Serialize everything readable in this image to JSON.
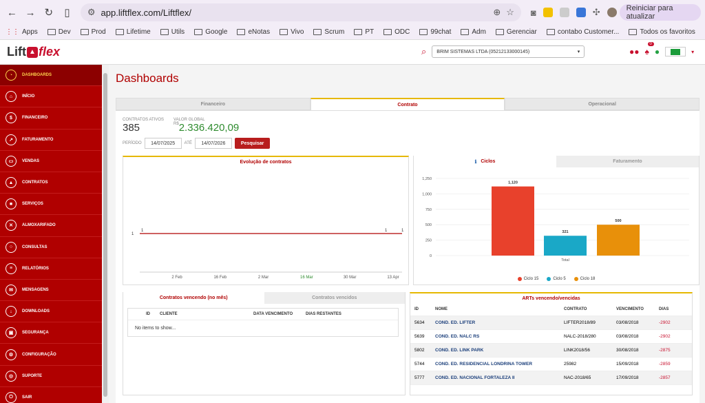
{
  "browser": {
    "url": "app.liftflex.com/Liftflex/",
    "update_button": "Reiniciar para atualizar",
    "bookmarks": [
      "Apps",
      "Dev",
      "Prod",
      "Lifetime",
      "Utils",
      "Google",
      "eNotas",
      "Vivo",
      "Scrum",
      "PT",
      "ODC",
      "99chat",
      "Adm",
      "Gerenciar",
      "contabo Customer...",
      "Todos os favoritos"
    ]
  },
  "header": {
    "logo_lift": "Lift",
    "logo_flex": "flex",
    "company": "BRIM SISTEMAS LTDA (05212133000145)",
    "notifications": "0"
  },
  "sidebar": {
    "items": [
      {
        "label": "DASHBOARDS",
        "icon": "gauge-icon",
        "glyph": "◔"
      },
      {
        "label": "INÍCIO",
        "icon": "home-icon",
        "glyph": "⌂"
      },
      {
        "label": "FINANCEIRO",
        "icon": "dollar-icon",
        "glyph": "$"
      },
      {
        "label": "FATURAMENTO",
        "icon": "chart-line-icon",
        "glyph": "↗"
      },
      {
        "label": "VENDAS",
        "icon": "folder-icon",
        "glyph": "▭"
      },
      {
        "label": "CONTRATOS",
        "icon": "lock-icon",
        "glyph": "▲"
      },
      {
        "label": "SERVIÇOS",
        "icon": "briefcase-icon",
        "glyph": "■"
      },
      {
        "label": "ALMOXARIFADO",
        "icon": "wrench-icon",
        "glyph": "✕"
      },
      {
        "label": "CONSULTAS",
        "icon": "search-icon",
        "glyph": "○"
      },
      {
        "label": "RELATÓRIOS",
        "icon": "report-icon",
        "glyph": "≡"
      },
      {
        "label": "MENSAGENS",
        "icon": "envelope-icon",
        "glyph": "✉"
      },
      {
        "label": "DOWNLOADS",
        "icon": "download-icon",
        "glyph": "↓"
      },
      {
        "label": "SEGURANÇA",
        "icon": "lock-icon",
        "glyph": "▣"
      },
      {
        "label": "CONFIGURAÇÃO",
        "icon": "gears-icon",
        "glyph": "⚙"
      },
      {
        "label": "SUPORTE",
        "icon": "lifebuoy-icon",
        "glyph": "◎"
      },
      {
        "label": "SAIR",
        "icon": "power-icon",
        "glyph": "⏻"
      }
    ]
  },
  "main": {
    "title": "Dashboards",
    "tabs": [
      "Financeiro",
      "Contrato",
      "Operacional"
    ],
    "stats": {
      "active_label": "CONTRATOS ATIVOS",
      "active_value": "385",
      "global_label": "VALOR GLOBAL",
      "currency": "R$",
      "global_value": "2.336.420,09"
    },
    "period": {
      "label": "PERÍODO",
      "from": "14/07/2025",
      "to_label": "ATÉ",
      "to": "14/07/2026",
      "button": "Pesquisar"
    },
    "evolution_title": "Evolução de contratos",
    "cycles_tab": "Ciclos",
    "billing_tab": "Faturamento",
    "contracts_tab_expiring": "Contratos vencendo (no mês)",
    "contracts_tab_expired": "Contratos vencidos",
    "contracts_headers": [
      "ID",
      "CLIENTE",
      "DATA VENCIMENTO",
      "DIAS RESTANTES"
    ],
    "no_items": "No items to show...",
    "arts_title": "ARTs vencendo/vencidas",
    "arts_headers": [
      "ID",
      "NOME",
      "CONTRATO",
      "VENCIMENTO",
      "DIAS"
    ],
    "arts_rows": [
      [
        "5634",
        "COND. ED. LIFTER",
        "LIFTER2018/89",
        "03/08/2018",
        "-2902"
      ],
      [
        "5639",
        "COND. ED. NALC RS",
        "NALC-2018/280",
        "03/08/2018",
        "-2902"
      ],
      [
        "5802",
        "COND. ED. LINK PARK",
        "LINK2018/56",
        "30/08/2018",
        "-2875"
      ],
      [
        "5744",
        "COND. ED. RESIDENCIAL LONDRINA TOWER",
        "25982",
        "15/09/2018",
        "-2859"
      ],
      [
        "5777",
        "COND. ED. NACIONAL FORTALEZA II",
        "NAC-2018/65",
        "17/09/2018",
        "-2857"
      ]
    ]
  },
  "chart_data": [
    {
      "type": "line",
      "title": "Evolução de contratos",
      "x": [
        "2 Feb",
        "16 Feb",
        "2 Mar",
        "16 Mar",
        "30 Mar",
        "13 Apr"
      ],
      "series": [
        {
          "values": [
            1,
            1,
            1,
            1,
            1,
            1
          ]
        }
      ],
      "point_labels": [
        "1",
        "1",
        "1"
      ],
      "ylabel_tick": "1"
    },
    {
      "type": "bar",
      "categories": [
        "Ciclo 15",
        "Ciclo 5",
        "Ciclo 18"
      ],
      "values": [
        1120,
        321,
        500
      ],
      "xlabel": "Total",
      "ylim": [
        0,
        1250
      ],
      "yticks": [
        0,
        250,
        500,
        750,
        1000,
        1250
      ],
      "colors": [
        "#e8412c",
        "#1aa8c7",
        "#e8900a"
      ]
    }
  ]
}
